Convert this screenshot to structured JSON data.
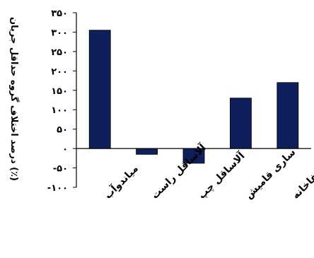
{
  "chart_data": {
    "type": "bar",
    "title": "",
    "ylabel": "درصد اختلاف گروه حداقل جریان (٪)",
    "xlabel": "",
    "categories": [
      "میاندوآب",
      "آلاساقل راست",
      "آلاساقل چپ",
      "ساری قامیش",
      "صفاخانه"
    ],
    "values": [
      305,
      -15,
      -38,
      130,
      170
    ],
    "ylim": [
      -100,
      350
    ],
    "yticks": [
      350,
      300,
      250,
      200,
      150,
      100,
      50,
      0,
      -50,
      -100
    ],
    "ytick_labels": [
      "۳۵۰",
      "۳۰۰",
      "۲۵۰",
      "۲۰۰",
      "۱۵۰",
      "۱۰۰",
      "۵۰",
      "۰",
      "-۵۰",
      "-۱۰۰"
    ],
    "bar_color": "#0f1f5c",
    "grid": false,
    "legend": "none"
  }
}
